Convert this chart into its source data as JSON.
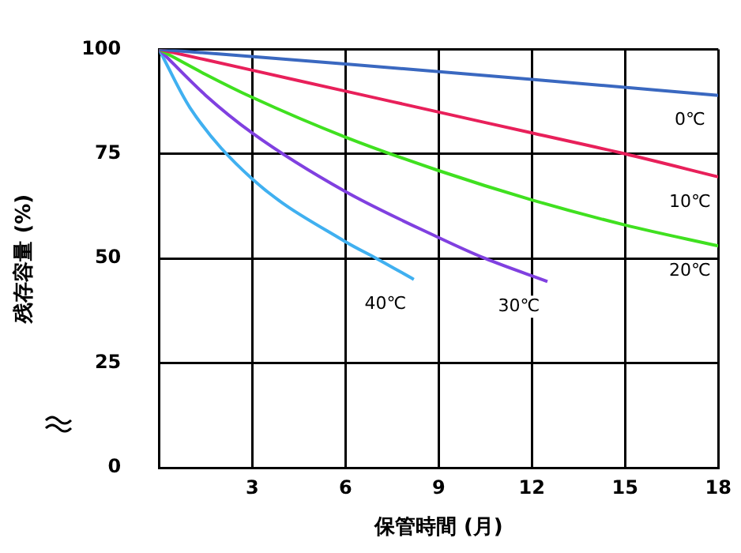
{
  "chart_data": {
    "type": "line",
    "xlabel": "保管時間 (月)",
    "ylabel": "残存容量 (%)",
    "xlim": [
      0,
      18
    ],
    "xticks": [
      {
        "value": 0,
        "label": null
      },
      3,
      6,
      9,
      12,
      15,
      18
    ],
    "ylim": [
      0,
      100
    ],
    "yticks": [
      0,
      25,
      50,
      75,
      100
    ],
    "grid": true,
    "legend": false,
    "marker": "none",
    "line_style": "solid",
    "series": [
      {
        "name": "0℃",
        "color": "#3a68c0",
        "x": [
          0,
          6,
          12,
          18
        ],
        "values": [
          100,
          96.5,
          92.8,
          89
        ]
      },
      {
        "name": "10℃",
        "color": "#e8205a",
        "x": [
          0,
          3,
          6,
          9,
          12,
          15,
          18
        ],
        "values": [
          100,
          95,
          90,
          85,
          80,
          75,
          69.5
        ]
      },
      {
        "name": "20℃",
        "color": "#40e020",
        "x": [
          0,
          1.5,
          3,
          6,
          9,
          12,
          15,
          18
        ],
        "values": [
          100,
          94,
          88.5,
          79,
          71,
          64,
          58,
          53
        ]
      },
      {
        "name": "30℃",
        "color": "#8040e0",
        "x": [
          0,
          1.5,
          3,
          6,
          9,
          10.5,
          12.5
        ],
        "values": [
          100,
          89,
          80,
          66,
          55,
          50,
          44.5
        ]
      },
      {
        "name": "40℃",
        "color": "#40b0f0",
        "x": [
          0,
          1,
          3,
          6,
          7,
          8.2
        ],
        "values": [
          100,
          86,
          69,
          54,
          50,
          45
        ]
      }
    ]
  }
}
